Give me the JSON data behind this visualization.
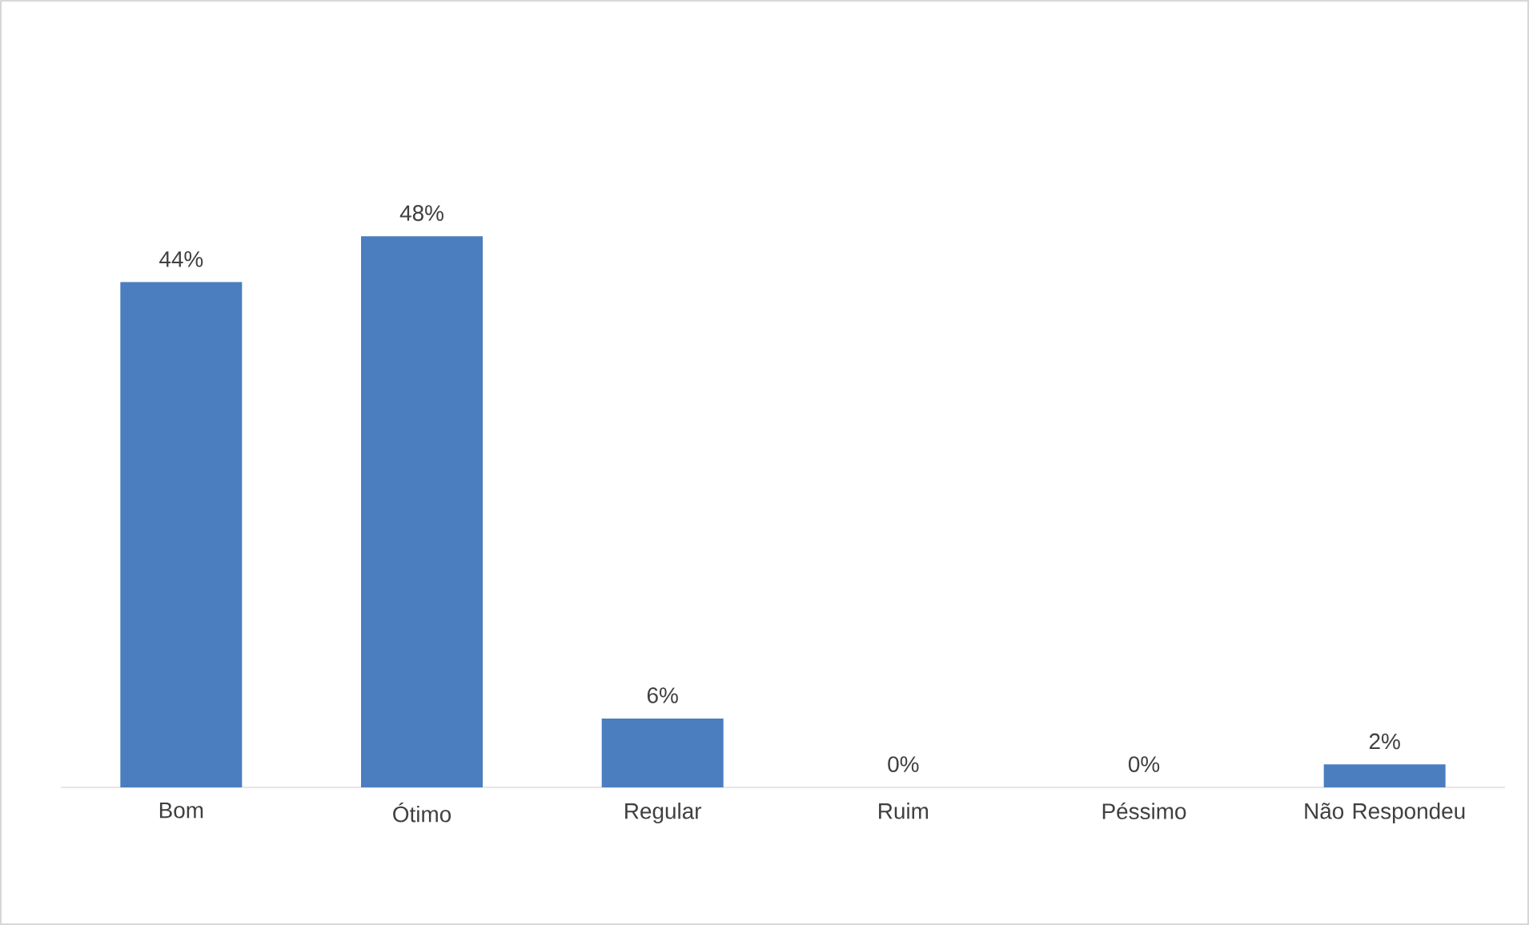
{
  "chart_data": {
    "type": "bar",
    "categories": [
      "Bom",
      "Ótimo",
      "Regular",
      "Ruim",
      "Péssimo",
      "Não Respondeu"
    ],
    "values": [
      44,
      48,
      6,
      0,
      0,
      2
    ],
    "color": "#4a7ebf",
    "value_labels": [
      "44%",
      "48%",
      "6%",
      "0%",
      "0%",
      "2%"
    ]
  }
}
